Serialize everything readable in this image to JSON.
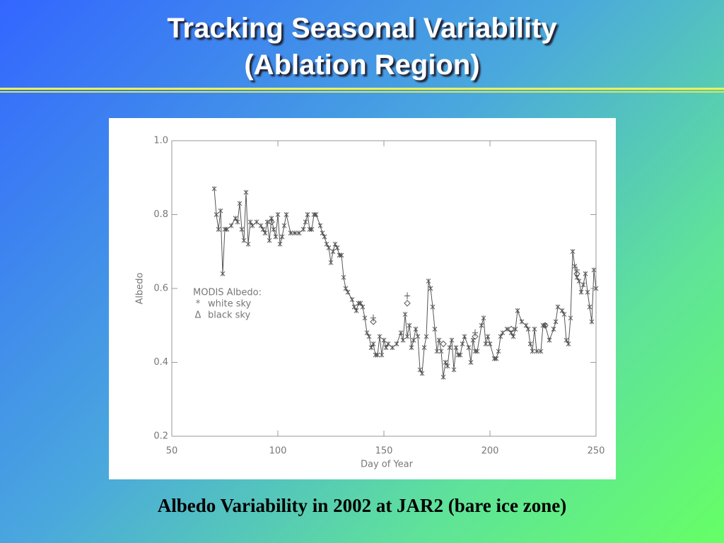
{
  "slide": {
    "title": [
      "Tracking Seasonal Variability",
      "(Ablation Region)"
    ],
    "caption": "Albedo Variability in 2002 at JAR2 (bare ice zone)"
  },
  "chart_data": {
    "type": "line",
    "xlabel": "Day of Year",
    "ylabel": "Albedo",
    "legend_title": "MODIS Albedo:",
    "xlim": [
      50,
      250
    ],
    "ylim": [
      0.2,
      1
    ],
    "xticks": [
      50,
      100,
      150,
      200,
      250
    ],
    "yticks": [
      0.2,
      0.4,
      0.6,
      0.8,
      {
        "value": 1,
        "label": "1.0"
      }
    ],
    "color": "#555555",
    "series": [
      {
        "name": "white sky",
        "marker": "star",
        "line": true,
        "symbol": "*",
        "x": [
          70,
          71,
          72,
          73,
          74,
          75,
          76,
          78,
          80,
          81,
          82,
          83,
          84,
          85,
          86,
          87,
          88,
          90,
          92,
          93,
          94,
          95,
          96,
          97,
          98,
          99,
          100,
          101,
          102,
          103,
          104,
          106,
          108,
          110,
          112,
          113,
          114,
          115,
          116,
          117,
          118,
          120,
          121,
          122,
          123,
          124,
          125,
          126,
          127,
          128,
          129,
          130,
          131,
          132,
          133,
          135,
          136,
          137,
          138,
          139,
          140,
          141,
          142,
          143,
          144,
          145,
          146,
          147,
          148,
          149,
          150,
          151,
          152,
          154,
          156,
          158,
          159,
          160,
          161,
          162,
          163,
          164,
          165,
          166,
          167,
          168,
          169,
          170,
          171,
          172,
          173,
          174,
          175,
          176,
          177,
          178,
          179,
          180,
          181,
          182,
          183,
          184,
          185,
          186,
          187,
          188,
          190,
          191,
          192,
          193,
          194,
          196,
          197,
          198,
          199,
          200,
          202,
          203,
          204,
          205,
          206,
          208,
          210,
          211,
          212,
          213,
          215,
          217,
          218,
          219,
          220,
          221,
          222,
          224,
          225,
          226,
          228,
          230,
          231,
          232,
          234,
          235,
          236,
          237,
          238,
          239,
          240,
          241,
          242,
          243,
          244,
          245,
          246,
          247,
          248,
          249,
          250
        ],
        "values": [
          0.87,
          0.8,
          0.76,
          0.81,
          0.64,
          0.76,
          0.76,
          0.77,
          0.79,
          0.78,
          0.83,
          0.76,
          0.73,
          0.86,
          0.72,
          0.78,
          0.77,
          0.78,
          0.77,
          0.76,
          0.75,
          0.78,
          0.73,
          0.79,
          0.76,
          0.74,
          0.8,
          0.72,
          0.74,
          0.77,
          0.8,
          0.75,
          0.75,
          0.75,
          0.76,
          0.78,
          0.8,
          0.76,
          0.76,
          0.8,
          0.8,
          0.77,
          0.75,
          0.74,
          0.72,
          0.71,
          0.67,
          0.7,
          0.72,
          0.71,
          0.69,
          0.69,
          0.63,
          0.6,
          0.59,
          0.57,
          0.55,
          0.54,
          0.56,
          0.56,
          0.55,
          0.52,
          0.48,
          0.47,
          0.44,
          0.45,
          0.42,
          0.42,
          0.47,
          0.42,
          0.46,
          0.44,
          0.45,
          0.44,
          0.45,
          0.48,
          0.46,
          0.53,
          0.47,
          0.5,
          0.44,
          0.46,
          0.49,
          0.47,
          0.38,
          0.37,
          0.44,
          0.47,
          0.62,
          0.6,
          0.55,
          0.49,
          0.43,
          0.46,
          0.43,
          0.36,
          0.4,
          0.39,
          0.44,
          0.46,
          0.38,
          0.44,
          0.42,
          0.42,
          0.45,
          0.47,
          0.44,
          0.4,
          0.46,
          0.43,
          0.43,
          0.5,
          0.52,
          0.45,
          0.47,
          0.45,
          0.41,
          0.41,
          0.43,
          0.47,
          0.48,
          0.49,
          0.48,
          0.47,
          0.49,
          0.54,
          0.51,
          0.5,
          0.49,
          0.45,
          0.43,
          0.49,
          0.43,
          0.43,
          0.5,
          0.5,
          0.46,
          0.49,
          0.51,
          0.55,
          0.54,
          0.53,
          0.46,
          0.45,
          0.52,
          0.7,
          0.66,
          0.63,
          0.62,
          0.59,
          0.61,
          0.64,
          0.59,
          0.55,
          0.51,
          0.65,
          0.6
        ]
      },
      {
        "name": "black sky",
        "marker": "diamond",
        "line": false,
        "symbol": "Δ",
        "x": [
          97,
          145,
          161,
          178,
          193,
          210,
          226,
          241
        ],
        "values": [
          0.78,
          0.51,
          0.56,
          0.45,
          0.47,
          0.49,
          0.5,
          0.64
        ]
      },
      {
        "marker": "plus",
        "line": false,
        "x": [
          145,
          161,
          193,
          241
        ],
        "values": [
          0.52,
          0.58,
          0.48,
          0.65
        ]
      }
    ]
  }
}
